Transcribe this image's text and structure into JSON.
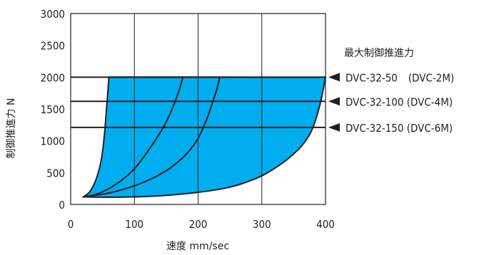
{
  "chart_data": {
    "type": "area",
    "xlabel": "速度 mm/sec",
    "ylabel": "制御推進力 N",
    "xlim": [
      0,
      400
    ],
    "ylim": [
      0,
      3000
    ],
    "x_ticks": [
      "0",
      "100",
      "200",
      "300",
      "400"
    ],
    "y_ticks": [
      "0",
      "500",
      "1000",
      "1500",
      "2000",
      "2500",
      "3000"
    ],
    "grid": true,
    "legend_title": "最大制御推進力",
    "fill_color": "#00aeef",
    "thrust_lines": [
      {
        "label": "DVC-32-50　(DVC-2M)",
        "value": 2000
      },
      {
        "label": "DVC-32-100 (DVC-4M)",
        "value": 1620
      },
      {
        "label": "DVC-32-150 (DVC-6M)",
        "value": 1210
      }
    ],
    "region_boundary": {
      "left": [
        [
          20,
          120
        ],
        [
          30,
          200
        ],
        [
          40,
          400
        ],
        [
          48,
          700
        ],
        [
          53,
          1100
        ],
        [
          57,
          1600
        ],
        [
          60,
          2000
        ]
      ],
      "top": [
        [
          60,
          2000
        ],
        [
          400,
          2000
        ]
      ],
      "right": [
        [
          400,
          2000
        ],
        [
          392,
          1600
        ],
        [
          380,
          1200
        ],
        [
          365,
          950
        ],
        [
          345,
          750
        ],
        [
          325,
          600
        ],
        [
          300,
          450
        ],
        [
          270,
          330
        ],
        [
          240,
          250
        ],
        [
          200,
          190
        ],
        [
          160,
          150
        ],
        [
          120,
          125
        ],
        [
          80,
          115
        ],
        [
          40,
          115
        ],
        [
          20,
          120
        ]
      ]
    },
    "series": [
      {
        "values": [
          [
            20,
            120
          ],
          [
            40,
            160
          ],
          [
            60,
            250
          ],
          [
            80,
            380
          ],
          [
            100,
            560
          ],
          [
            120,
            820
          ],
          [
            140,
            1120
          ],
          [
            155,
            1400
          ],
          [
            165,
            1650
          ],
          [
            172,
            1850
          ],
          [
            176,
            2000
          ]
        ]
      },
      {
        "values": [
          [
            20,
            120
          ],
          [
            50,
            160
          ],
          [
            80,
            230
          ],
          [
            110,
            330
          ],
          [
            140,
            470
          ],
          [
            165,
            640
          ],
          [
            185,
            830
          ],
          [
            200,
            1040
          ],
          [
            212,
            1300
          ],
          [
            222,
            1580
          ],
          [
            229,
            1800
          ],
          [
            234,
            2000
          ]
        ]
      }
    ]
  }
}
